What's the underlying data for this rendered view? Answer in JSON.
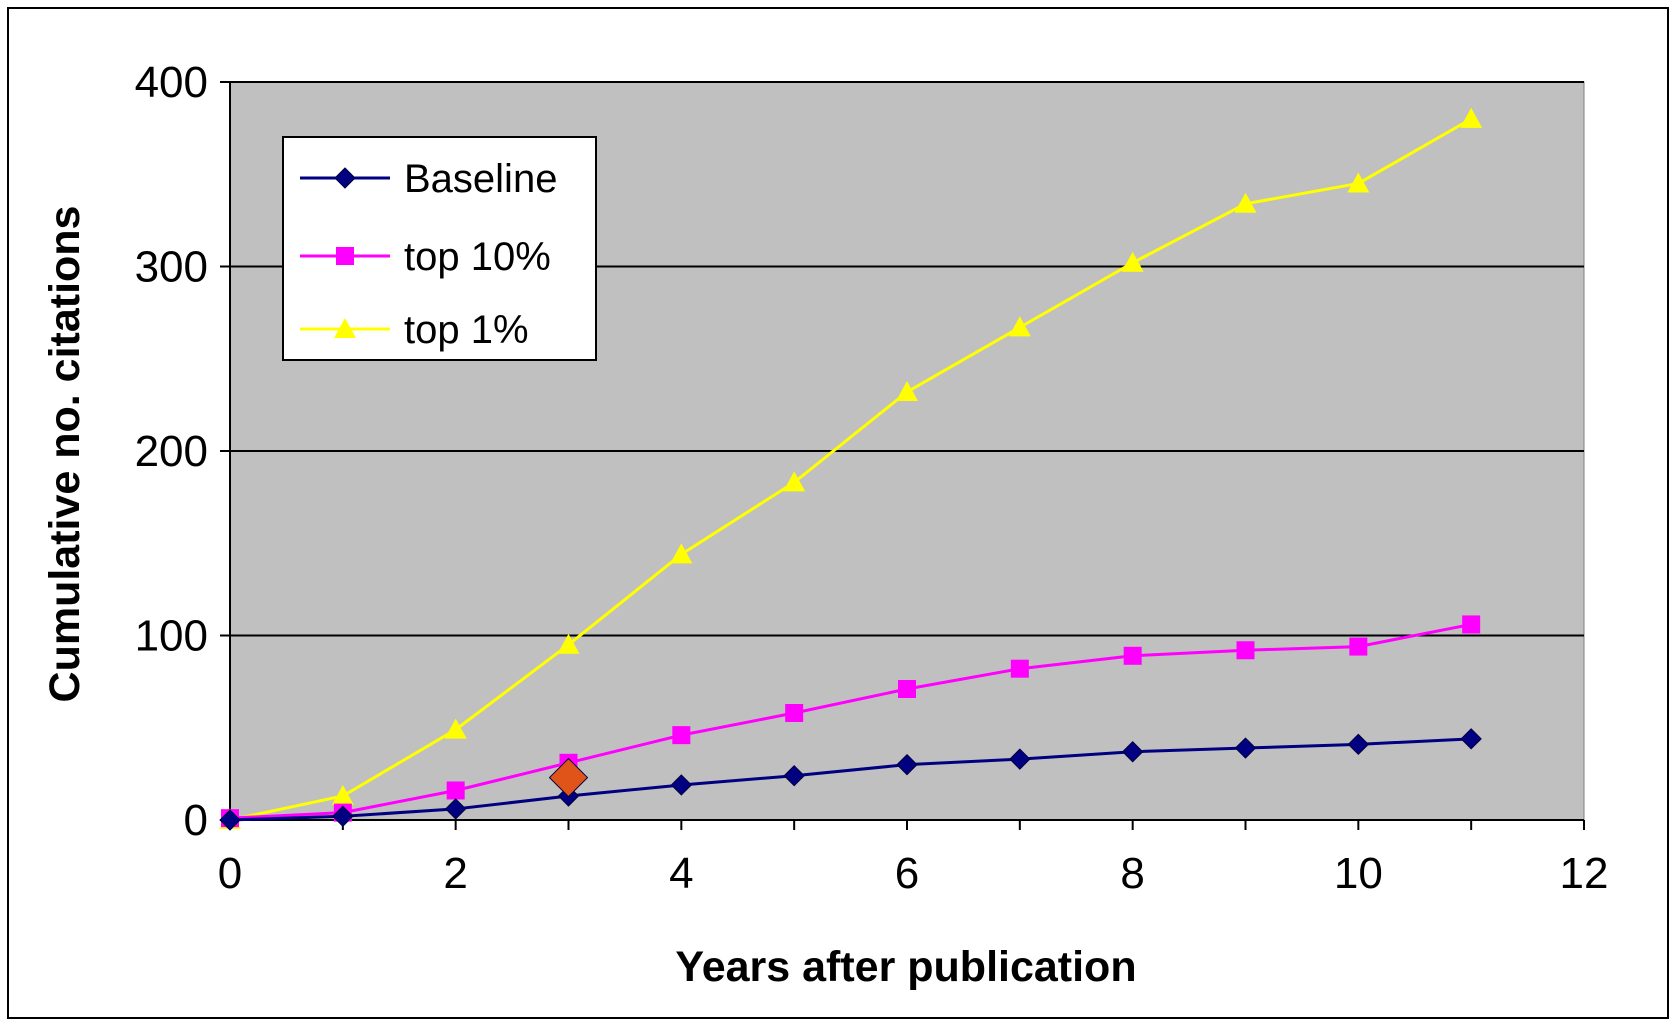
{
  "chart_data": {
    "type": "line",
    "title": "",
    "xlabel": "Years after publication",
    "ylabel": "Cumulative no. citations",
    "xlim": [
      0,
      12
    ],
    "ylim": [
      0,
      400
    ],
    "x_ticks": [
      0,
      2,
      4,
      6,
      8,
      10,
      12
    ],
    "y_ticks": [
      0,
      100,
      200,
      300,
      400
    ],
    "grid": "horizontal major gridlines",
    "plot_background": "#c0c0c0",
    "legend_position": "top-left",
    "x": [
      0,
      1,
      2,
      3,
      4,
      5,
      6,
      7,
      8,
      9,
      10,
      11
    ],
    "series": [
      {
        "name": "Baseline",
        "color": "#000080",
        "marker": "diamond",
        "values": [
          0,
          2,
          6,
          13,
          19,
          24,
          30,
          33,
          37,
          39,
          41,
          44
        ]
      },
      {
        "name": "top 10%",
        "color": "#ff00ff",
        "marker": "square",
        "values": [
          1,
          4,
          16,
          31,
          46,
          58,
          71,
          82,
          89,
          92,
          94,
          106
        ]
      },
      {
        "name": "top 1%",
        "color": "#ffff00",
        "marker": "triangle",
        "values": [
          0,
          13,
          49,
          95,
          144,
          183,
          232,
          267,
          302,
          334,
          345,
          380
        ]
      }
    ],
    "highlight": {
      "x": 3,
      "y": 23,
      "color": "#e0541a",
      "marker": "diamond"
    }
  }
}
